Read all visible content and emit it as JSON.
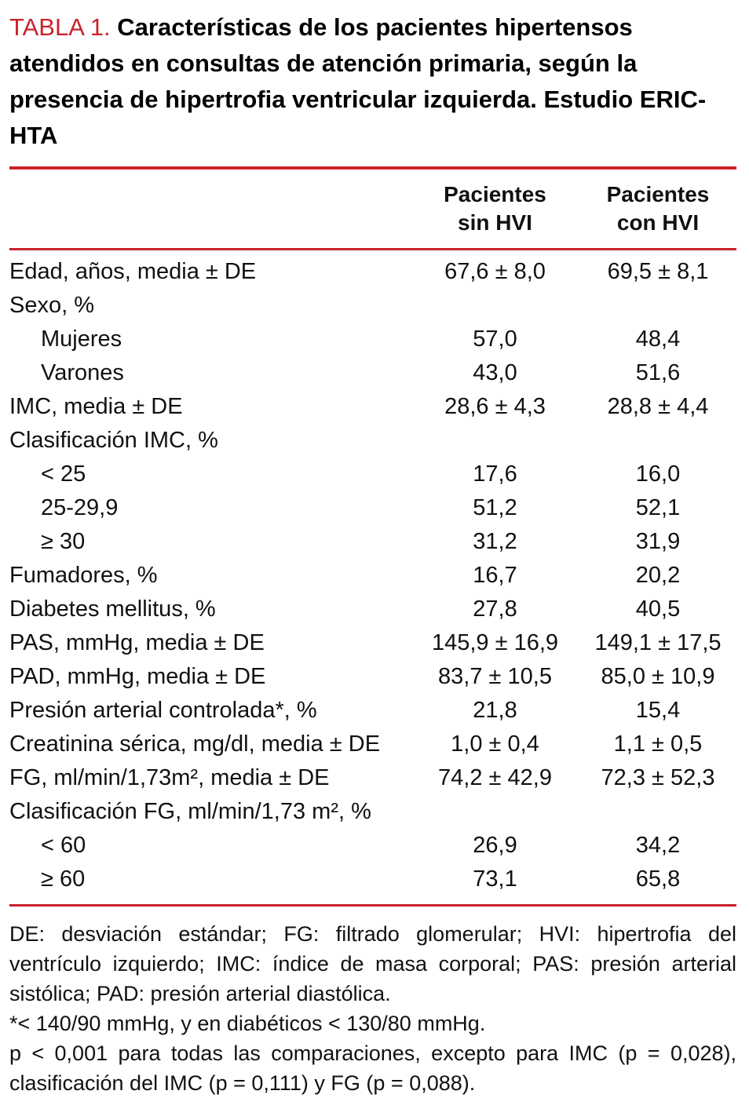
{
  "title": {
    "label": "TABLA 1.",
    "text": "Características de los pacientes hipertensos atendidos en consultas de atención primaria, según la presencia de hipertrofia ventricular izquierda. Estudio ERIC-HTA"
  },
  "table": {
    "col_headers": [
      {
        "line1": "Pacientes",
        "line2": "sin HVI"
      },
      {
        "line1": "Pacientes",
        "line2": "con HVI"
      }
    ],
    "rows": [
      {
        "label": "Edad, años, media ± DE",
        "sin": "67,6 ± 8,0",
        "con": "69,5 ± 8,1"
      },
      {
        "label": "Sexo, %",
        "sin": "",
        "con": ""
      },
      {
        "label": "Mujeres",
        "sin": "57,0",
        "con": "48,4"
      },
      {
        "label": "Varones",
        "sin": "43,0",
        "con": "51,6"
      },
      {
        "label": "IMC, media ± DE",
        "sin": "28,6 ± 4,3",
        "con": "28,8 ± 4,4"
      },
      {
        "label": "Clasificación IMC, %",
        "sin": "",
        "con": ""
      },
      {
        "label": "< 25",
        "sin": "17,6",
        "con": "16,0"
      },
      {
        "label": "25-29,9",
        "sin": "51,2",
        "con": "52,1"
      },
      {
        "label": "≥ 30",
        "sin": "31,2",
        "con": "31,9"
      },
      {
        "label": "Fumadores, %",
        "sin": "16,7",
        "con": "20,2"
      },
      {
        "label": "Diabetes mellitus, %",
        "sin": "27,8",
        "con": "40,5"
      },
      {
        "label": "PAS, mmHg, media ± DE",
        "sin": "145,9 ± 16,9",
        "con": "149,1 ± 17,5"
      },
      {
        "label": "PAD, mmHg, media ± DE",
        "sin": "83,7 ± 10,5",
        "con": "85,0 ± 10,9"
      },
      {
        "label": "Presión arterial controlada*, %",
        "sin": "21,8",
        "con": "15,4"
      },
      {
        "label": "Creatinina sérica, mg/dl, media ± DE",
        "sin": "1,0 ± 0,4",
        "con": "1,1 ± 0,5"
      },
      {
        "label": "FG, ml/min/1,73m², media ± DE",
        "sin": "74,2 ± 42,9",
        "con": "72,3 ± 52,3"
      },
      {
        "label": "Clasificación FG, ml/min/1,73 m², %",
        "sin": "",
        "con": ""
      },
      {
        "label": "< 60",
        "sin": "26,9",
        "con": "34,2"
      },
      {
        "label": "≥ 60",
        "sin": "73,1",
        "con": "65,8"
      }
    ]
  },
  "footnotes": [
    "DE: desviación estándar; FG: filtrado glomerular; HVI: hipertrofia del ventrículo izquierdo; IMC: índice de masa corporal; PAS: presión arterial sistólica; PAD: presión arterial diastólica.",
    "*< 140/90 mmHg, y en diabéticos < 130/80 mmHg.",
    "p < 0,001 para todas las comparaciones, excepto para IMC (p = 0,028), clasificación del IMC (p = 0,111) y FG (p = 0,088)."
  ],
  "colors": {
    "accent_red": "#c8232a",
    "text": "#111111",
    "background": "#ffffff"
  }
}
